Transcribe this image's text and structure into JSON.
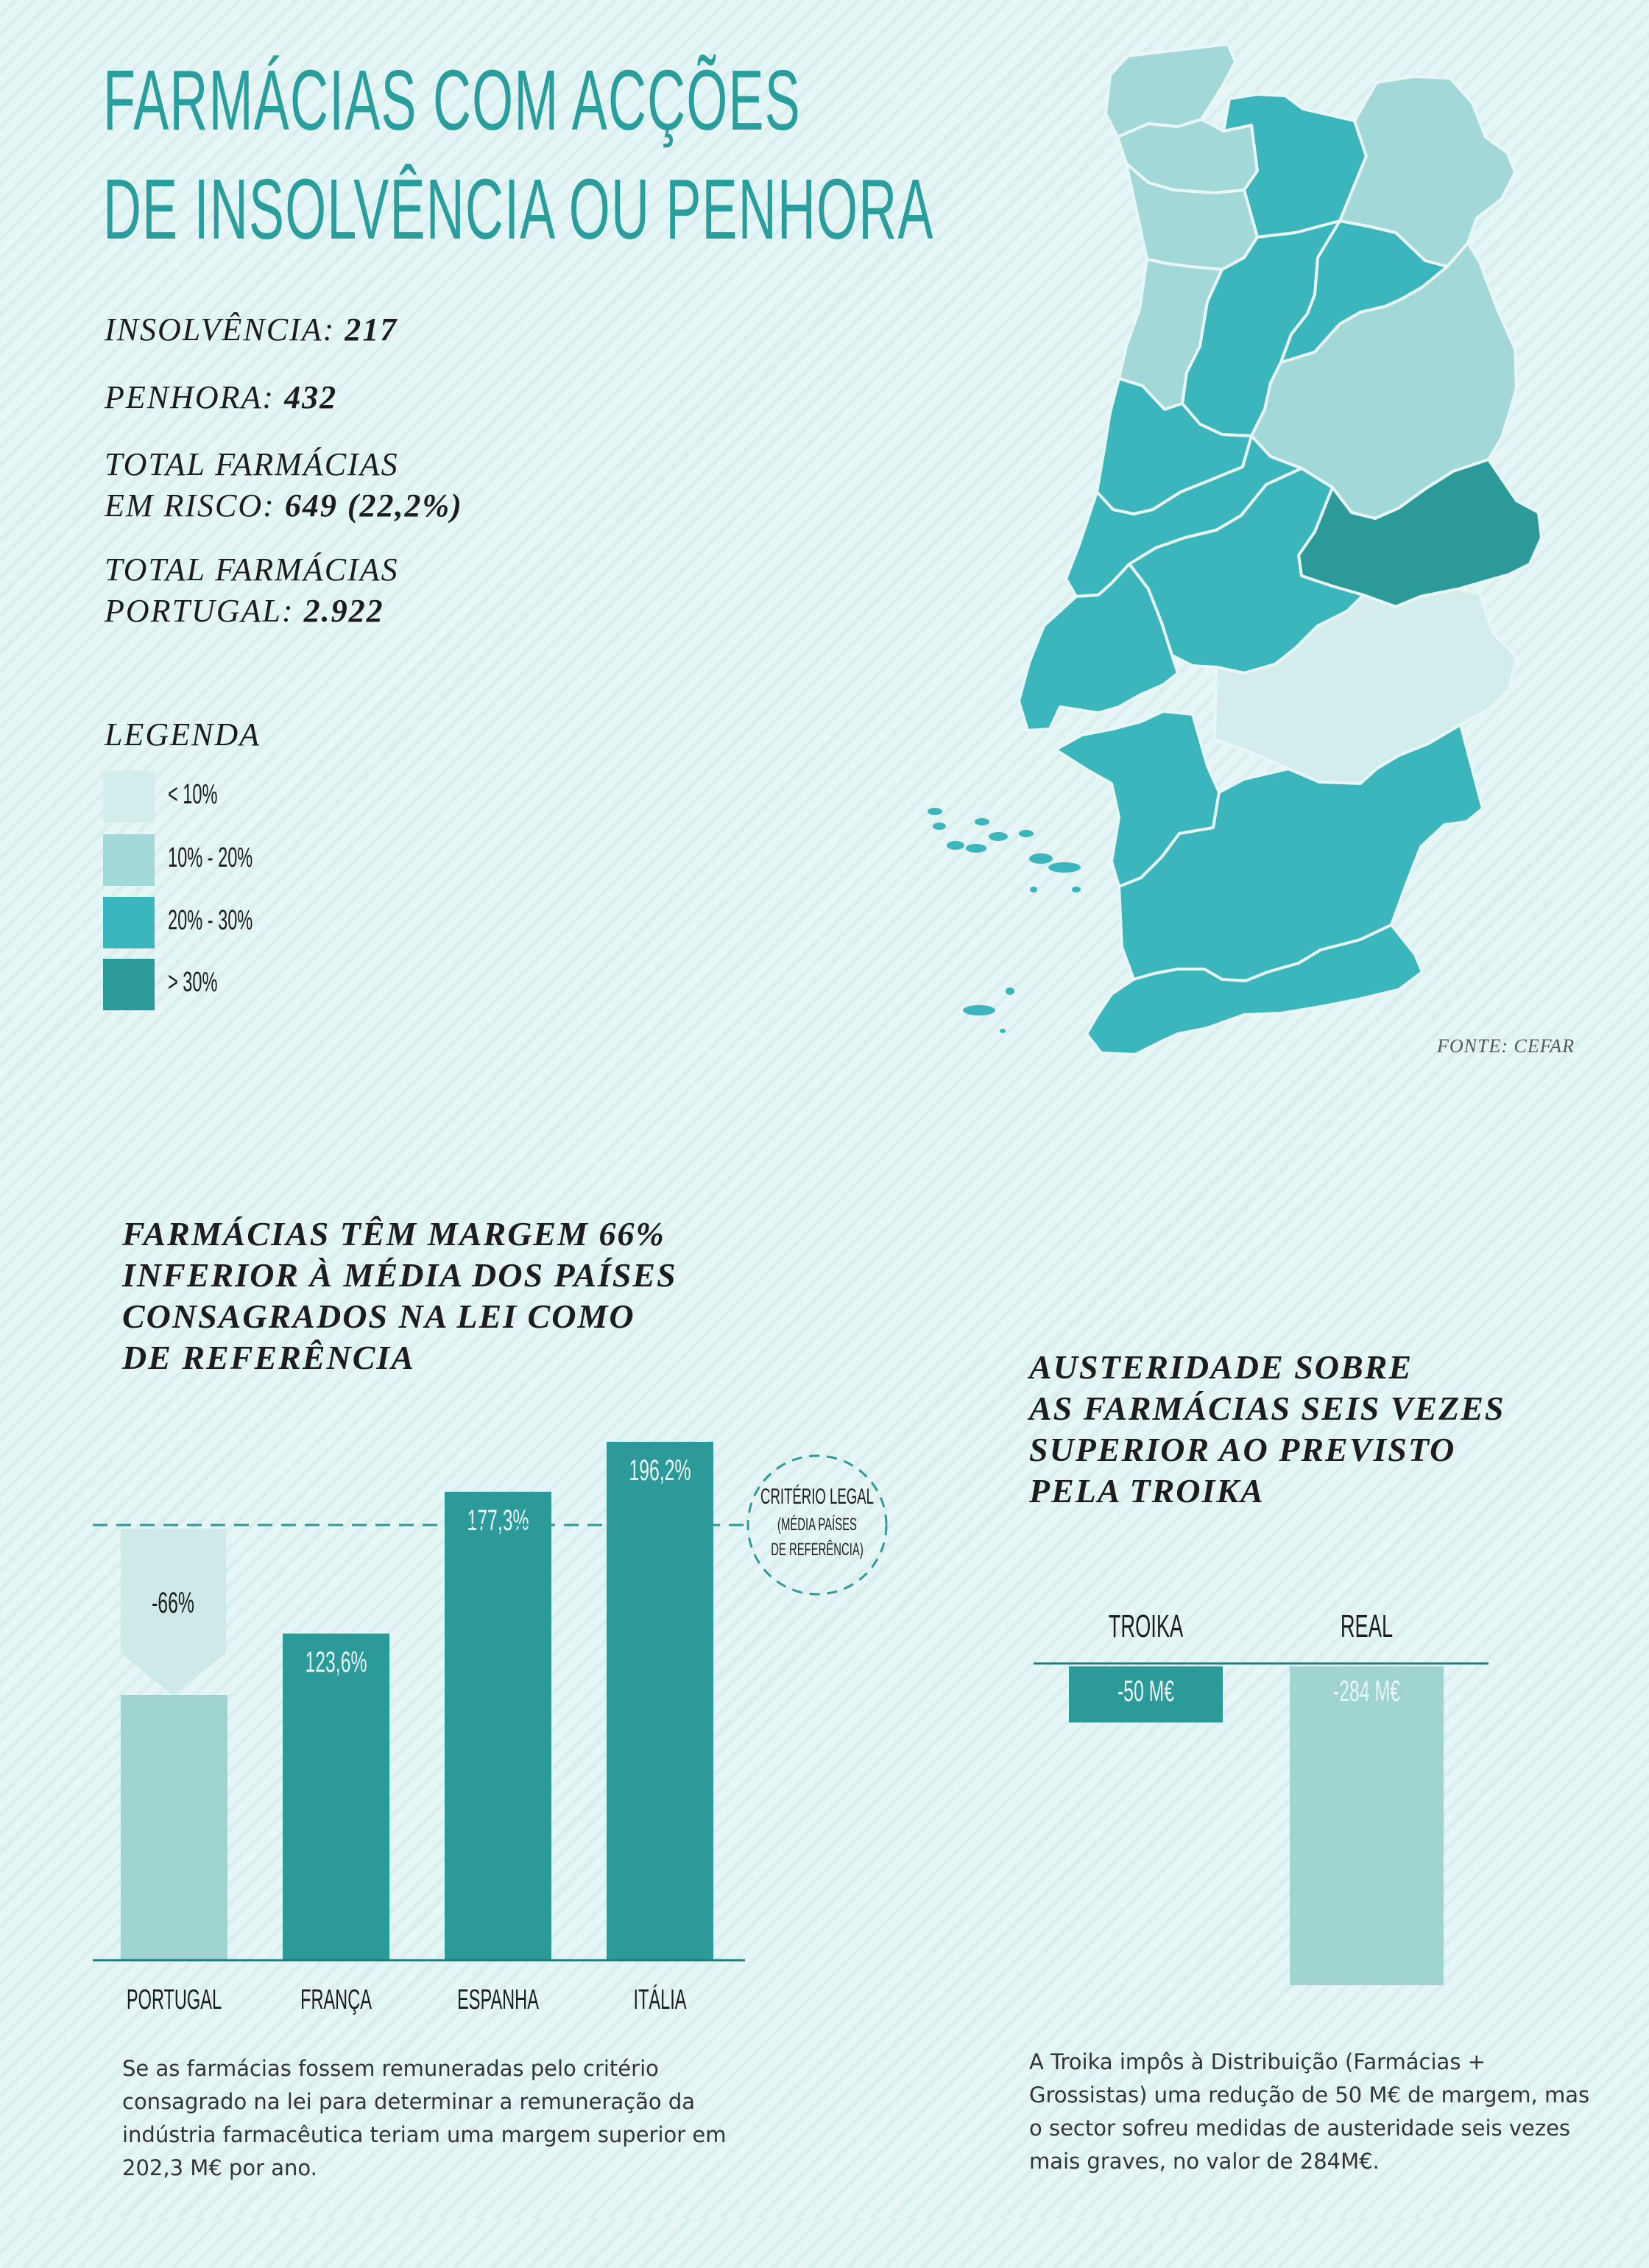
{
  "header": {
    "title_line1": "FARMÁCIAS COM ACÇÕES",
    "title_line2": "DE INSOLVÊNCIA OU PENHORA"
  },
  "stats": {
    "insolvencia_label": "INSOLVÊNCIA:",
    "insolvencia_value": "217",
    "penhora_label": "PENHORA:",
    "penhora_value": "432",
    "risco_label_1": "TOTAL FARMÁCIAS",
    "risco_label_2": "EM RISCO:",
    "risco_value": "649 (22,2%)",
    "total_label_1": "TOTAL FARMÁCIAS",
    "total_label_2": "PORTUGAL:",
    "total_value": "2.922"
  },
  "legend": {
    "title": "LEGENDA",
    "items": [
      {
        "label": "< 10%",
        "color": "#d3ecec"
      },
      {
        "label": "10% - 20%",
        "color": "#a3d8d8"
      },
      {
        "label": "20% - 30%",
        "color": "#3bb6bd"
      },
      {
        "label": "> 30%",
        "color": "#2c9a98"
      }
    ]
  },
  "source": "FONTE: CEFAR",
  "margin_section": {
    "title": "FARMÁCIAS TÊM MARGEM 66%\nINFERIOR À MÉDIA DOS PAÍSES\nCONSAGRADOS NA LEI COMO\nDE REFERÊNCIA",
    "note": "Se as farmácias fossem remuneradas pelo critério consagrado na lei para determinar a remuneração da indústria farmacêutica teriam uma margem superior em 202,3 M€ por ano.",
    "arrow_label": "-66%",
    "criterion_line1": "CRITÉRIO LEGAL",
    "criterion_line2": "(MÉDIA PAÍSES",
    "criterion_line3": "DE REFERÊNCIA)"
  },
  "austerity_section": {
    "title": "AUSTERIDADE SOBRE\nAS FARMÁCIAS SEIS VEZES\nSUPERIOR AO PREVISTO\nPELA TROIKA",
    "note": "A Troika impôs à Distribuição (Farmácias + Grossistas) uma redução de 50 M€ de margem, mas o sector sofreu medidas de austeridade seis vezes mais graves, no valor de 284M€."
  },
  "chart_data": [
    {
      "type": "bar",
      "categories": [
        "PORTUGAL",
        "FRANÇA",
        "ESPANHA",
        "ITÁLIA"
      ],
      "values": [
        null,
        123.6,
        177.3,
        196.2
      ],
      "data_labels": [
        "",
        "123,6%",
        "177,3%",
        "196,2%"
      ],
      "reference_line": {
        "label": "CRITÉRIO LEGAL (MÉDIA PAÍSES DE REFERÊNCIA)"
      },
      "colors": [
        "#9ed3d0",
        "#2c9a98",
        "#2c9a98",
        "#2c9a98"
      ]
    },
    {
      "type": "bar",
      "categories": [
        "TROIKA",
        "REAL"
      ],
      "values": [
        -50,
        -284
      ],
      "data_labels": [
        "-50 M€",
        "-284 M€"
      ],
      "colors": [
        "#2c9a98",
        "#9ed3d0"
      ]
    }
  ]
}
